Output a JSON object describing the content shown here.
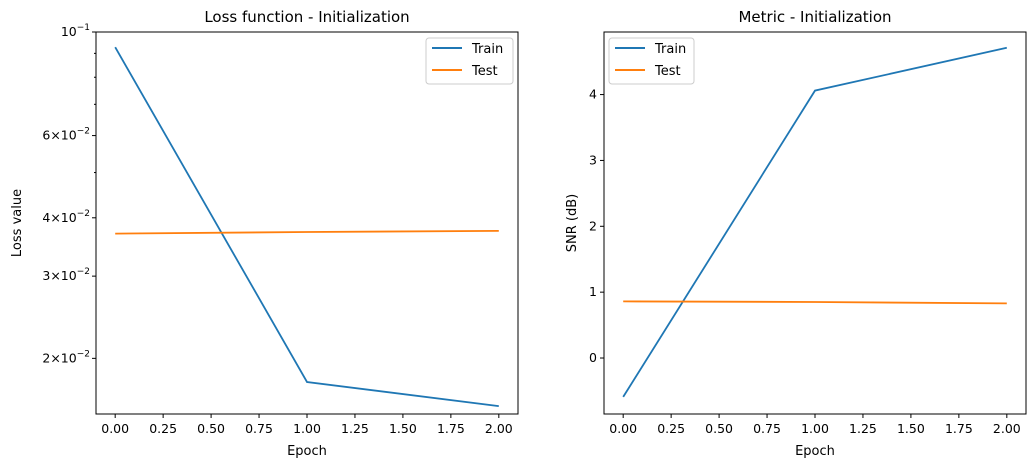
{
  "colors": {
    "train": "#1f77b4",
    "test": "#ff7f0e"
  },
  "chart_data": [
    {
      "type": "line",
      "title": "Loss function - Initialization",
      "xlabel": "Epoch",
      "ylabel": "Loss value",
      "xlim": [
        -0.1,
        2.1
      ],
      "ylim": [
        0.0152,
        0.1
      ],
      "yscale": "log",
      "grid": false,
      "legend_position": "top-right",
      "x_ticks": [
        "0.00",
        "0.25",
        "0.50",
        "0.75",
        "1.00",
        "1.25",
        "1.50",
        "1.75",
        "2.00"
      ],
      "y_tick_labels": [
        {
          "mantissa": "",
          "exponent": "−1",
          "value": 0.1
        },
        {
          "mantissa": "6",
          "exponent": "−2",
          "value": 0.06
        },
        {
          "mantissa": "4",
          "exponent": "−2",
          "value": 0.04
        },
        {
          "mantissa": "3",
          "exponent": "−2",
          "value": 0.03
        },
        {
          "mantissa": "2",
          "exponent": "−2",
          "value": 0.02
        }
      ],
      "minor_ticks": [
        0.09,
        0.08,
        0.07,
        0.05
      ],
      "series": [
        {
          "name": "Train",
          "x": [
            0,
            1,
            2
          ],
          "y": [
            0.0928,
            0.0178,
            0.0158
          ]
        },
        {
          "name": "Test",
          "x": [
            0,
            1,
            2
          ],
          "y": [
            0.037,
            0.0373,
            0.0375
          ]
        }
      ]
    },
    {
      "type": "line",
      "title": "Metric - Initialization",
      "xlabel": "Epoch",
      "ylabel": "SNR (dB)",
      "xlim": [
        -0.1,
        2.1
      ],
      "ylim": [
        -0.85,
        4.95
      ],
      "grid": false,
      "legend_position": "top-left",
      "x_ticks": [
        "0.00",
        "0.25",
        "0.50",
        "0.75",
        "1.00",
        "1.25",
        "1.50",
        "1.75",
        "2.00"
      ],
      "y_ticks": [
        0,
        1,
        2,
        3,
        4
      ],
      "series": [
        {
          "name": "Train",
          "x": [
            0,
            1,
            2
          ],
          "y": [
            -0.59,
            4.06,
            4.71
          ]
        },
        {
          "name": "Test",
          "x": [
            0,
            1,
            2
          ],
          "y": [
            0.86,
            0.85,
            0.83
          ]
        }
      ]
    }
  ]
}
